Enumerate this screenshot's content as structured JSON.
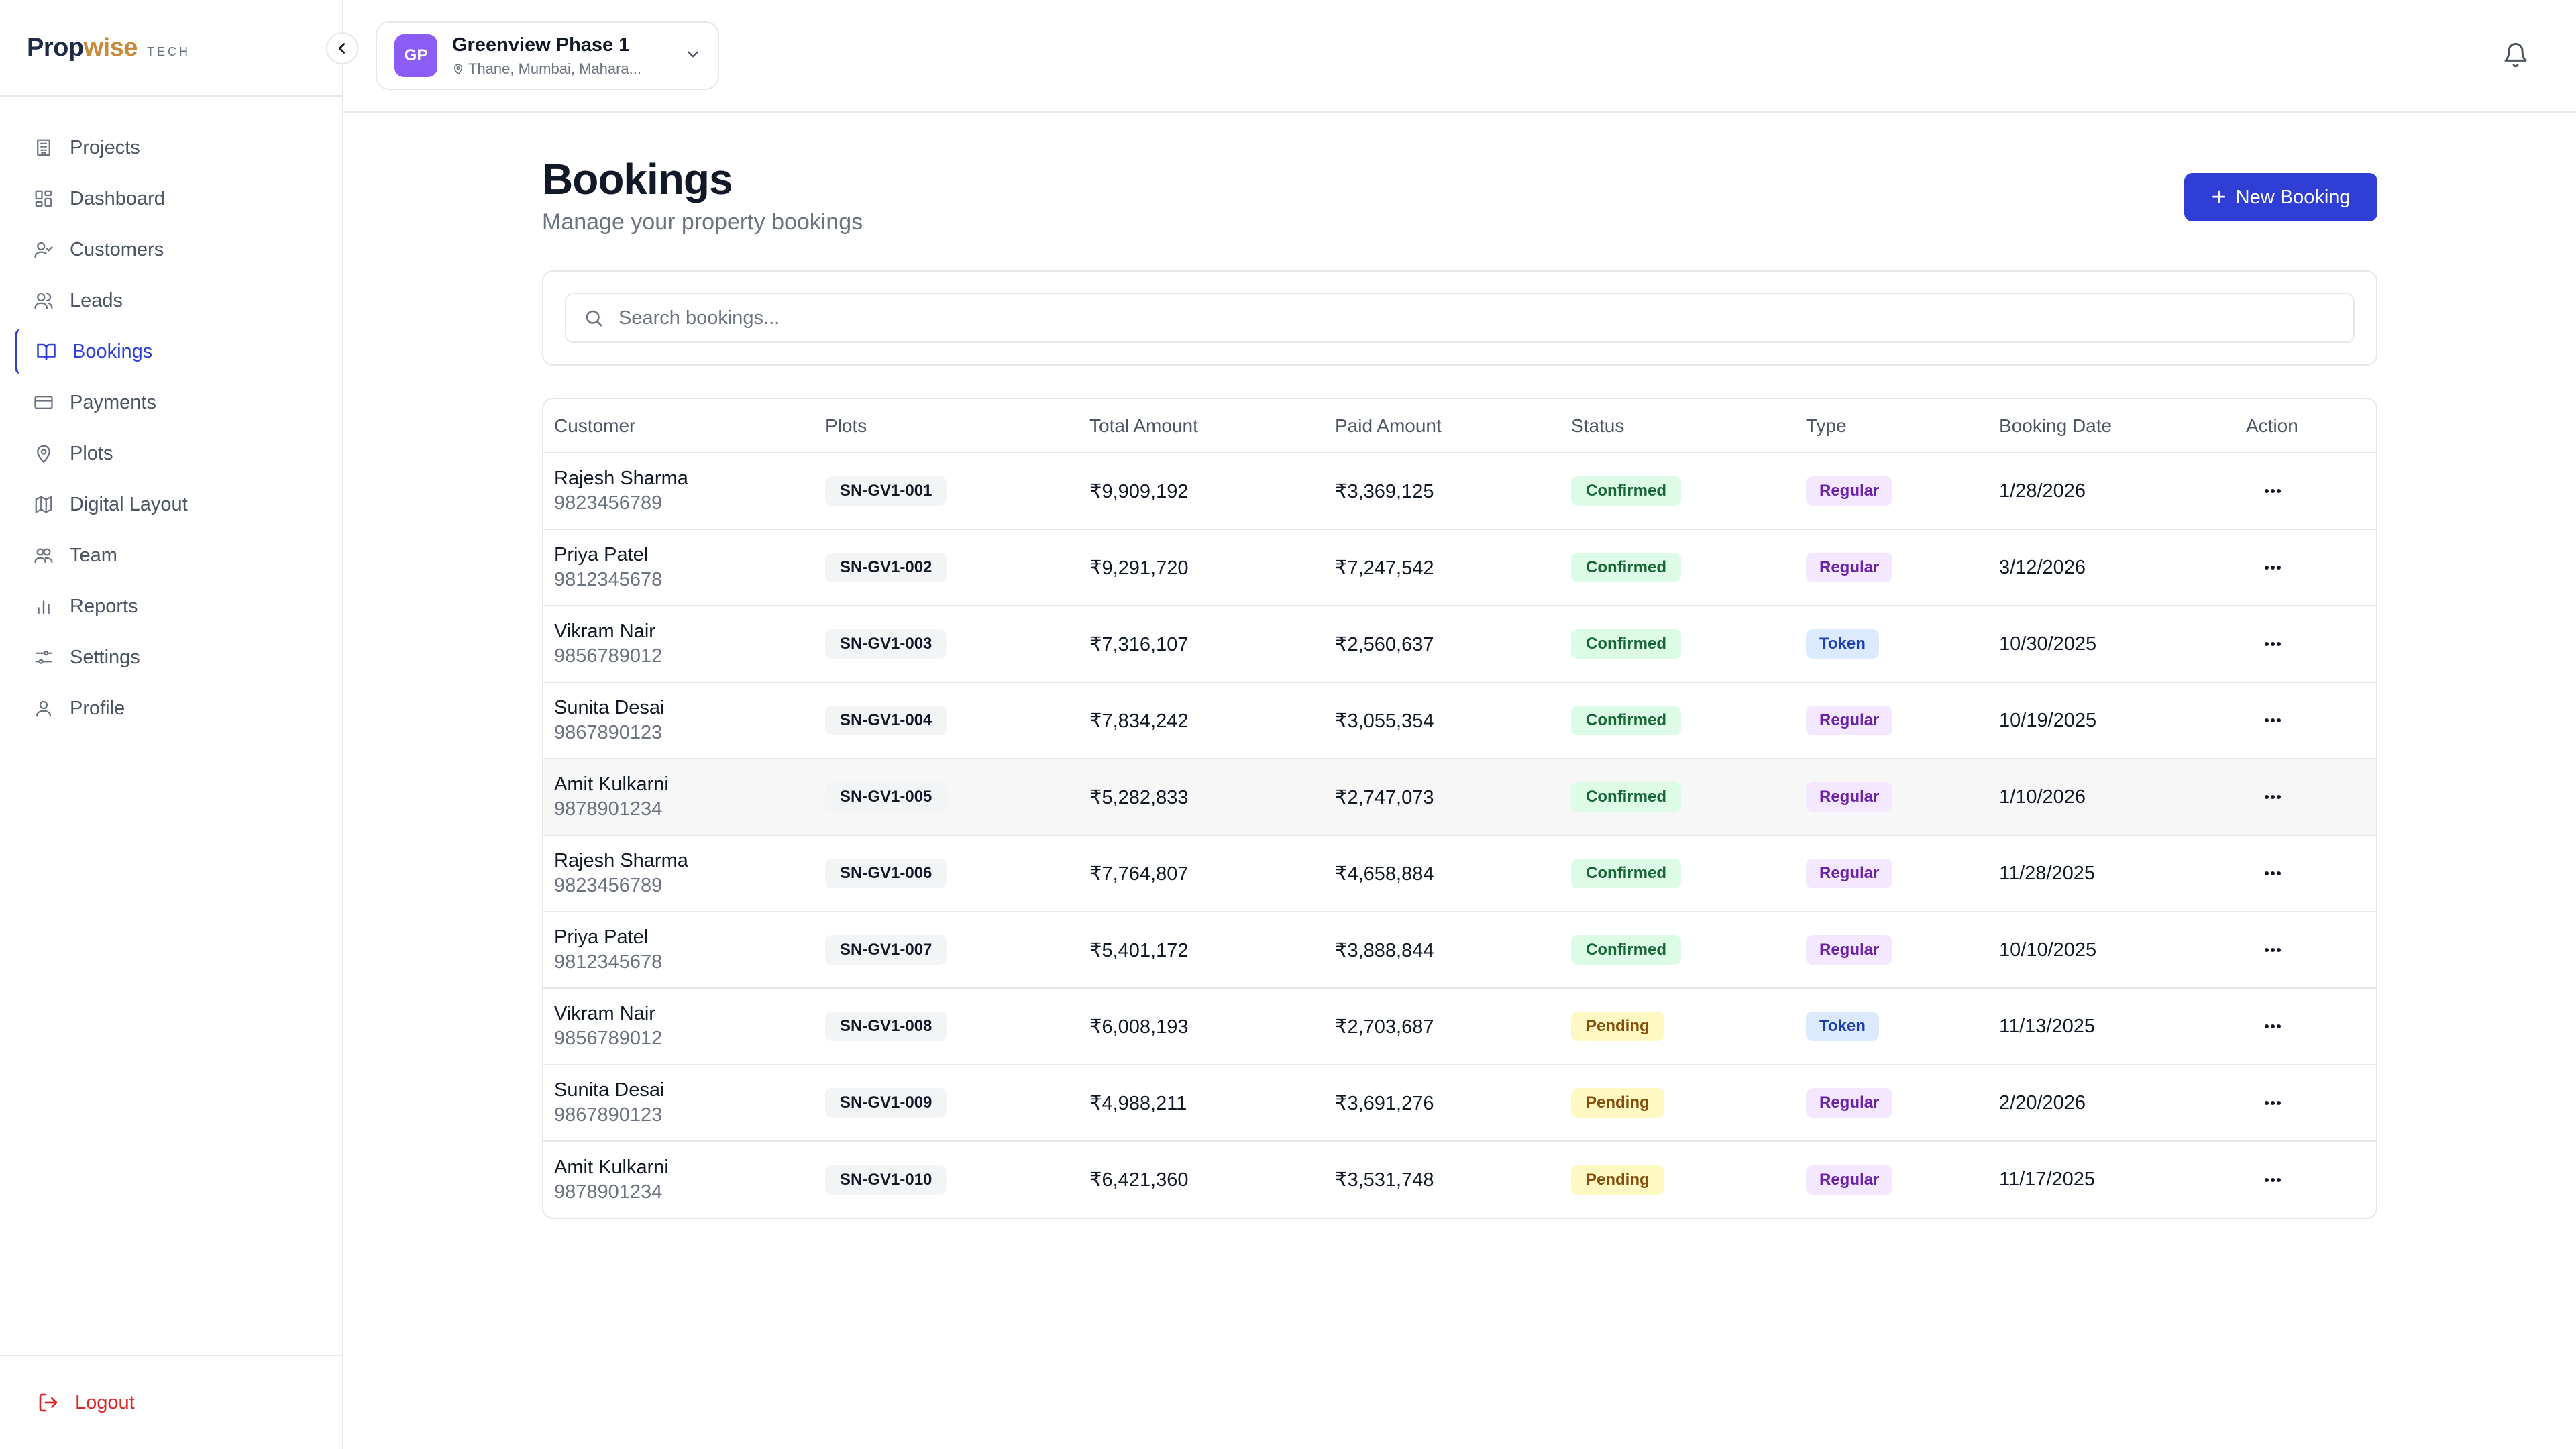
{
  "brand": {
    "part1": "Prop",
    "part2": "wise",
    "suffix": "TECH"
  },
  "sidebar": {
    "items": [
      {
        "label": "Projects",
        "icon": "building-icon"
      },
      {
        "label": "Dashboard",
        "icon": "grid-icon"
      },
      {
        "label": "Customers",
        "icon": "user-check-icon"
      },
      {
        "label": "Leads",
        "icon": "users-icon"
      },
      {
        "label": "Bookings",
        "icon": "book-open-icon",
        "active": true
      },
      {
        "label": "Payments",
        "icon": "credit-card-icon"
      },
      {
        "label": "Plots",
        "icon": "map-pin-icon"
      },
      {
        "label": "Digital Layout",
        "icon": "map-icon"
      },
      {
        "label": "Team",
        "icon": "team-icon"
      },
      {
        "label": "Reports",
        "icon": "bar-chart-icon"
      },
      {
        "label": "Settings",
        "icon": "sliders-icon"
      },
      {
        "label": "Profile",
        "icon": "user-icon"
      }
    ],
    "logout": "Logout"
  },
  "project": {
    "initials": "GP",
    "name": "Greenview Phase 1",
    "location": "Thane, Mumbai, Mahara..."
  },
  "page": {
    "title": "Bookings",
    "subtitle": "Manage your property bookings",
    "new_button": "New Booking"
  },
  "search": {
    "placeholder": "Search bookings..."
  },
  "table": {
    "headers": [
      "Customer",
      "Plots",
      "Total Amount",
      "Paid Amount",
      "Status",
      "Type",
      "Booking Date",
      "Action"
    ],
    "rows": [
      {
        "name": "Rajesh Sharma",
        "phone": "9823456789",
        "plot": "SN-GV1-001",
        "total": "₹9,909,192",
        "paid": "₹3,369,125",
        "status": "Confirmed",
        "type": "Regular",
        "date": "1/28/2026"
      },
      {
        "name": "Priya Patel",
        "phone": "9812345678",
        "plot": "SN-GV1-002",
        "total": "₹9,291,720",
        "paid": "₹7,247,542",
        "status": "Confirmed",
        "type": "Regular",
        "date": "3/12/2026"
      },
      {
        "name": "Vikram Nair",
        "phone": "9856789012",
        "plot": "SN-GV1-003",
        "total": "₹7,316,107",
        "paid": "₹2,560,637",
        "status": "Confirmed",
        "type": "Token",
        "date": "10/30/2025"
      },
      {
        "name": "Sunita Desai",
        "phone": "9867890123",
        "plot": "SN-GV1-004",
        "total": "₹7,834,242",
        "paid": "₹3,055,354",
        "status": "Confirmed",
        "type": "Regular",
        "date": "10/19/2025"
      },
      {
        "name": "Amit Kulkarni",
        "phone": "9878901234",
        "plot": "SN-GV1-005",
        "total": "₹5,282,833",
        "paid": "₹2,747,073",
        "status": "Confirmed",
        "type": "Regular",
        "date": "1/10/2026"
      },
      {
        "name": "Rajesh Sharma",
        "phone": "9823456789",
        "plot": "SN-GV1-006",
        "total": "₹7,764,807",
        "paid": "₹4,658,884",
        "status": "Confirmed",
        "type": "Regular",
        "date": "11/28/2025"
      },
      {
        "name": "Priya Patel",
        "phone": "9812345678",
        "plot": "SN-GV1-007",
        "total": "₹5,401,172",
        "paid": "₹3,888,844",
        "status": "Confirmed",
        "type": "Regular",
        "date": "10/10/2025"
      },
      {
        "name": "Vikram Nair",
        "phone": "9856789012",
        "plot": "SN-GV1-008",
        "total": "₹6,008,193",
        "paid": "₹2,703,687",
        "status": "Pending",
        "type": "Token",
        "date": "11/13/2025"
      },
      {
        "name": "Sunita Desai",
        "phone": "9867890123",
        "plot": "SN-GV1-009",
        "total": "₹4,988,211",
        "paid": "₹3,691,276",
        "status": "Pending",
        "type": "Regular",
        "date": "2/20/2026"
      },
      {
        "name": "Amit Kulkarni",
        "phone": "9878901234",
        "plot": "SN-GV1-010",
        "total": "₹6,421,360",
        "paid": "₹3,531,748",
        "status": "Pending",
        "type": "Regular",
        "date": "11/17/2025"
      }
    ]
  },
  "colors": {
    "accent": "#2f3fd6",
    "brand_orange": "#c98a3a",
    "project_avatar": "#8b5cf6",
    "logout": "#dc2626"
  }
}
